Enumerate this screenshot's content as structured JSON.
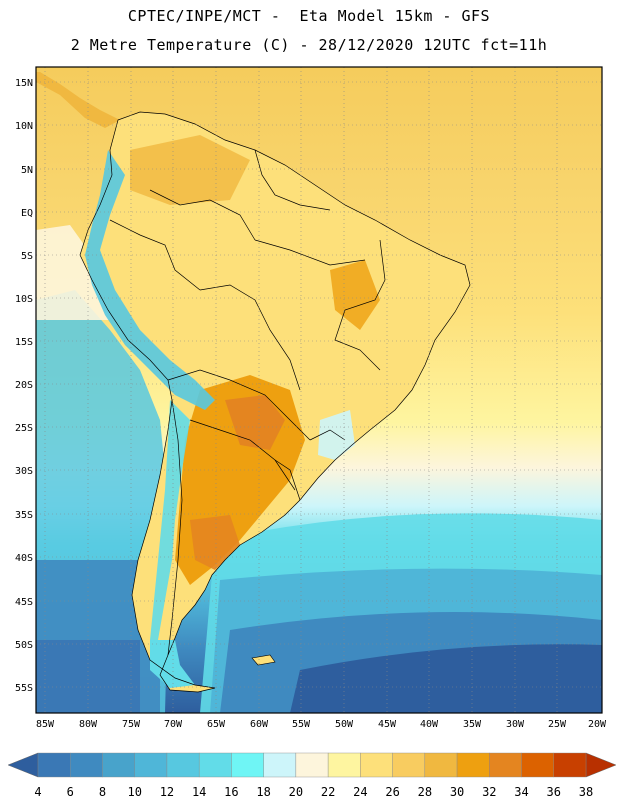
{
  "header": {
    "title_line1": "CPTEC/INPE/MCT -  Eta Model 15km - GFS",
    "title_line2": "2 Metre Temperature (C) - 28/12/2020 12UTC fct=11h"
  },
  "map": {
    "lat_labels": [
      "15N",
      "10N",
      "5N",
      "EQ",
      "5S",
      "10S",
      "15S",
      "20S",
      "25S",
      "30S",
      "35S",
      "40S",
      "45S",
      "50S",
      "55S"
    ],
    "lon_labels": [
      "85W",
      "80W",
      "75W",
      "70W",
      "65W",
      "60W",
      "55W",
      "50W",
      "45W",
      "40W",
      "35W",
      "30W",
      "25W",
      "20W"
    ]
  },
  "colorbar": {
    "labels": [
      "4",
      "6",
      "8",
      "10",
      "12",
      "14",
      "16",
      "18",
      "20",
      "22",
      "24",
      "26",
      "28",
      "30",
      "32",
      "34",
      "36",
      "38"
    ],
    "colors": [
      "#3a78b5",
      "#3f8ac0",
      "#48a3cb",
      "#4fb6d8",
      "#57c8e0",
      "#62dce8",
      "#6ff5f5",
      "#cdf5fa",
      "#fdf5dc",
      "#fef5a0",
      "#fde07a",
      "#f8cc60",
      "#f0b840",
      "#eea010",
      "#e48520",
      "#dc6200",
      "#c84000"
    ],
    "low_color": "#2e5e9e",
    "high_color": "#b83000"
  }
}
